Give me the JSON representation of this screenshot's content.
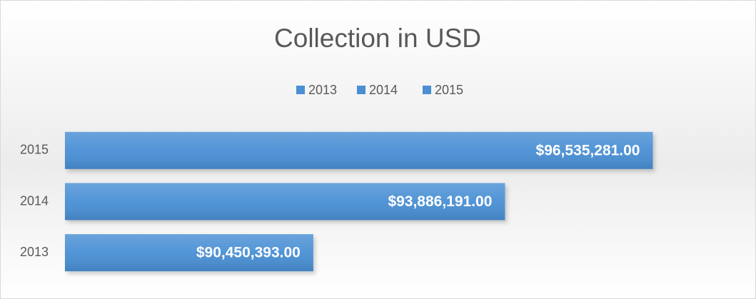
{
  "chart_data": {
    "type": "hbar",
    "title": "Collection in USD",
    "categories": [
      "2013",
      "2014",
      "2015"
    ],
    "series": [
      {
        "name": "2013",
        "color": "#4a8fd4",
        "values": [
          90450393,
          null,
          null
        ],
        "value_labels": [
          "$90,450,393.00",
          null,
          null
        ]
      },
      {
        "name": "2014",
        "color": "#4a8fd4",
        "values": [
          null,
          93886191,
          null
        ],
        "value_labels": [
          null,
          "$93,886,191.00",
          null
        ]
      },
      {
        "name": "2015",
        "color": "#4a8fd4",
        "values": [
          null,
          null,
          96535281
        ],
        "value_labels": [
          null,
          null,
          "$96,535,281.00"
        ]
      }
    ],
    "xlim": [
      86000000,
      98000000
    ],
    "legend": "top",
    "grid": false
  }
}
